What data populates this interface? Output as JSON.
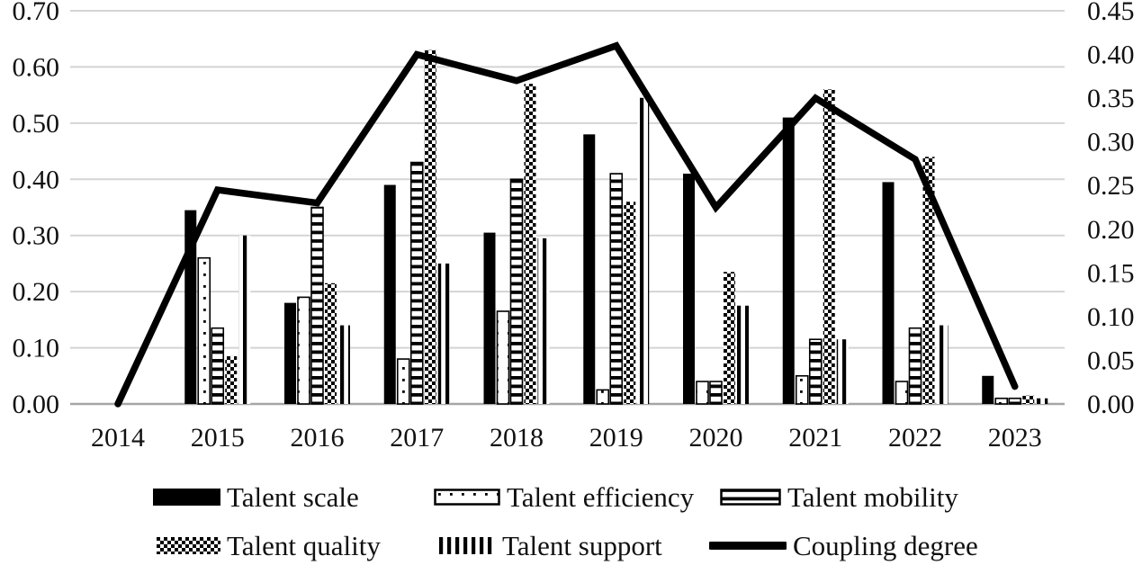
{
  "chart_data": {
    "type": "bar",
    "subtype": "grouped-bars-with-line-dual-axis",
    "title": "",
    "xlabel": "",
    "ylabel_left": "",
    "ylabel_right": "",
    "grid": true,
    "legend_position": "bottom",
    "categories": [
      "2014",
      "2015",
      "2016",
      "2017",
      "2018",
      "2019",
      "2020",
      "2021",
      "2022",
      "2023"
    ],
    "left_axis": {
      "min": 0.0,
      "max": 0.7,
      "step": 0.1,
      "ticks": [
        "0.00",
        "0.10",
        "0.20",
        "0.30",
        "0.40",
        "0.50",
        "0.60",
        "0.70"
      ]
    },
    "right_axis": {
      "min": 0.0,
      "max": 0.45,
      "step": 0.05,
      "ticks": [
        "0.00",
        "0.05",
        "0.10",
        "0.15",
        "0.20",
        "0.25",
        "0.30",
        "0.35",
        "0.40",
        "0.45"
      ]
    },
    "series": [
      {
        "name": "Talent scale",
        "type": "bar",
        "axis": "left",
        "pattern": "solid",
        "values": [
          0,
          0.345,
          0.18,
          0.39,
          0.305,
          0.48,
          0.41,
          0.51,
          0.395,
          0.05
        ]
      },
      {
        "name": "Talent efficiency",
        "type": "bar",
        "axis": "left",
        "pattern": "dots",
        "values": [
          0,
          0.26,
          0.19,
          0.08,
          0.165,
          0.025,
          0.04,
          0.05,
          0.04,
          0.01
        ]
      },
      {
        "name": "Talent mobility",
        "type": "bar",
        "axis": "left",
        "pattern": "hstripe",
        "values": [
          0,
          0.135,
          0.35,
          0.43,
          0.4,
          0.41,
          0.04,
          0.115,
          0.135,
          0.01
        ]
      },
      {
        "name": "Talent quality",
        "type": "bar",
        "axis": "left",
        "pattern": "checker",
        "values": [
          0,
          0.085,
          0.215,
          0.63,
          0.57,
          0.36,
          0.235,
          0.56,
          0.44,
          0.015
        ]
      },
      {
        "name": "Talent support",
        "type": "bar",
        "axis": "left",
        "pattern": "vstripe",
        "values": [
          0,
          0.3,
          0.14,
          0.25,
          0.295,
          0.545,
          0.175,
          0.115,
          0.14,
          0.01
        ]
      },
      {
        "name": "Coupling degree",
        "type": "line",
        "axis": "right",
        "pattern": "line",
        "values": [
          0.0,
          0.245,
          0.23,
          0.4,
          0.37,
          0.41,
          0.225,
          0.35,
          0.28,
          0.02
        ]
      }
    ]
  },
  "colors": {
    "series_black": "#000000",
    "gridline": "#d4d4d4",
    "axis_line": "#a6a6a6",
    "background": "#ffffff",
    "text": "#1a1a1a"
  }
}
